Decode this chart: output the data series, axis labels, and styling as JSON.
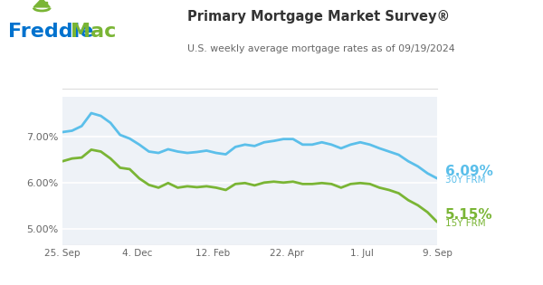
{
  "title": "Primary Mortgage Market Survey®",
  "subtitle": "U.S. weekly average mortgage rates as of 09/19/2024",
  "rate_30y_label": "6.09%",
  "rate_30y_sub": "30Y FRM",
  "rate_15y_label": "5.15%",
  "rate_15y_sub": "15Y FRM",
  "color_30y": "#5bbfea",
  "color_15y": "#7ab535",
  "color_freddie_blue": "#0072ce",
  "color_freddie_green": "#7ab535",
  "plot_bg": "#eef2f7",
  "xtick_labels": [
    "25. Sep",
    "4. Dec",
    "12. Feb",
    "22. Apr",
    "1. Jul",
    "9. Sep"
  ],
  "ytick_labels": [
    "5.00%",
    "6.00%",
    "7.00%"
  ],
  "ytick_values": [
    5.0,
    6.0,
    7.0
  ],
  "ylim": [
    4.65,
    7.85
  ],
  "line_width": 2.0,
  "rate_30y": [
    7.09,
    7.12,
    7.22,
    7.5,
    7.44,
    7.29,
    7.03,
    6.95,
    6.82,
    6.67,
    6.64,
    6.72,
    6.67,
    6.64,
    6.66,
    6.69,
    6.64,
    6.61,
    6.77,
    6.82,
    6.79,
    6.87,
    6.9,
    6.94,
    6.94,
    6.82,
    6.82,
    6.87,
    6.82,
    6.74,
    6.82,
    6.87,
    6.82,
    6.74,
    6.67,
    6.6,
    6.46,
    6.35,
    6.2,
    6.09
  ],
  "rate_15y": [
    6.46,
    6.52,
    6.54,
    6.71,
    6.67,
    6.52,
    6.32,
    6.29,
    6.09,
    5.95,
    5.89,
    5.99,
    5.89,
    5.92,
    5.9,
    5.92,
    5.89,
    5.84,
    5.97,
    5.99,
    5.94,
    6.0,
    6.02,
    6.0,
    6.02,
    5.97,
    5.97,
    5.99,
    5.97,
    5.89,
    5.97,
    5.99,
    5.97,
    5.89,
    5.84,
    5.77,
    5.62,
    5.51,
    5.36,
    5.15
  ]
}
